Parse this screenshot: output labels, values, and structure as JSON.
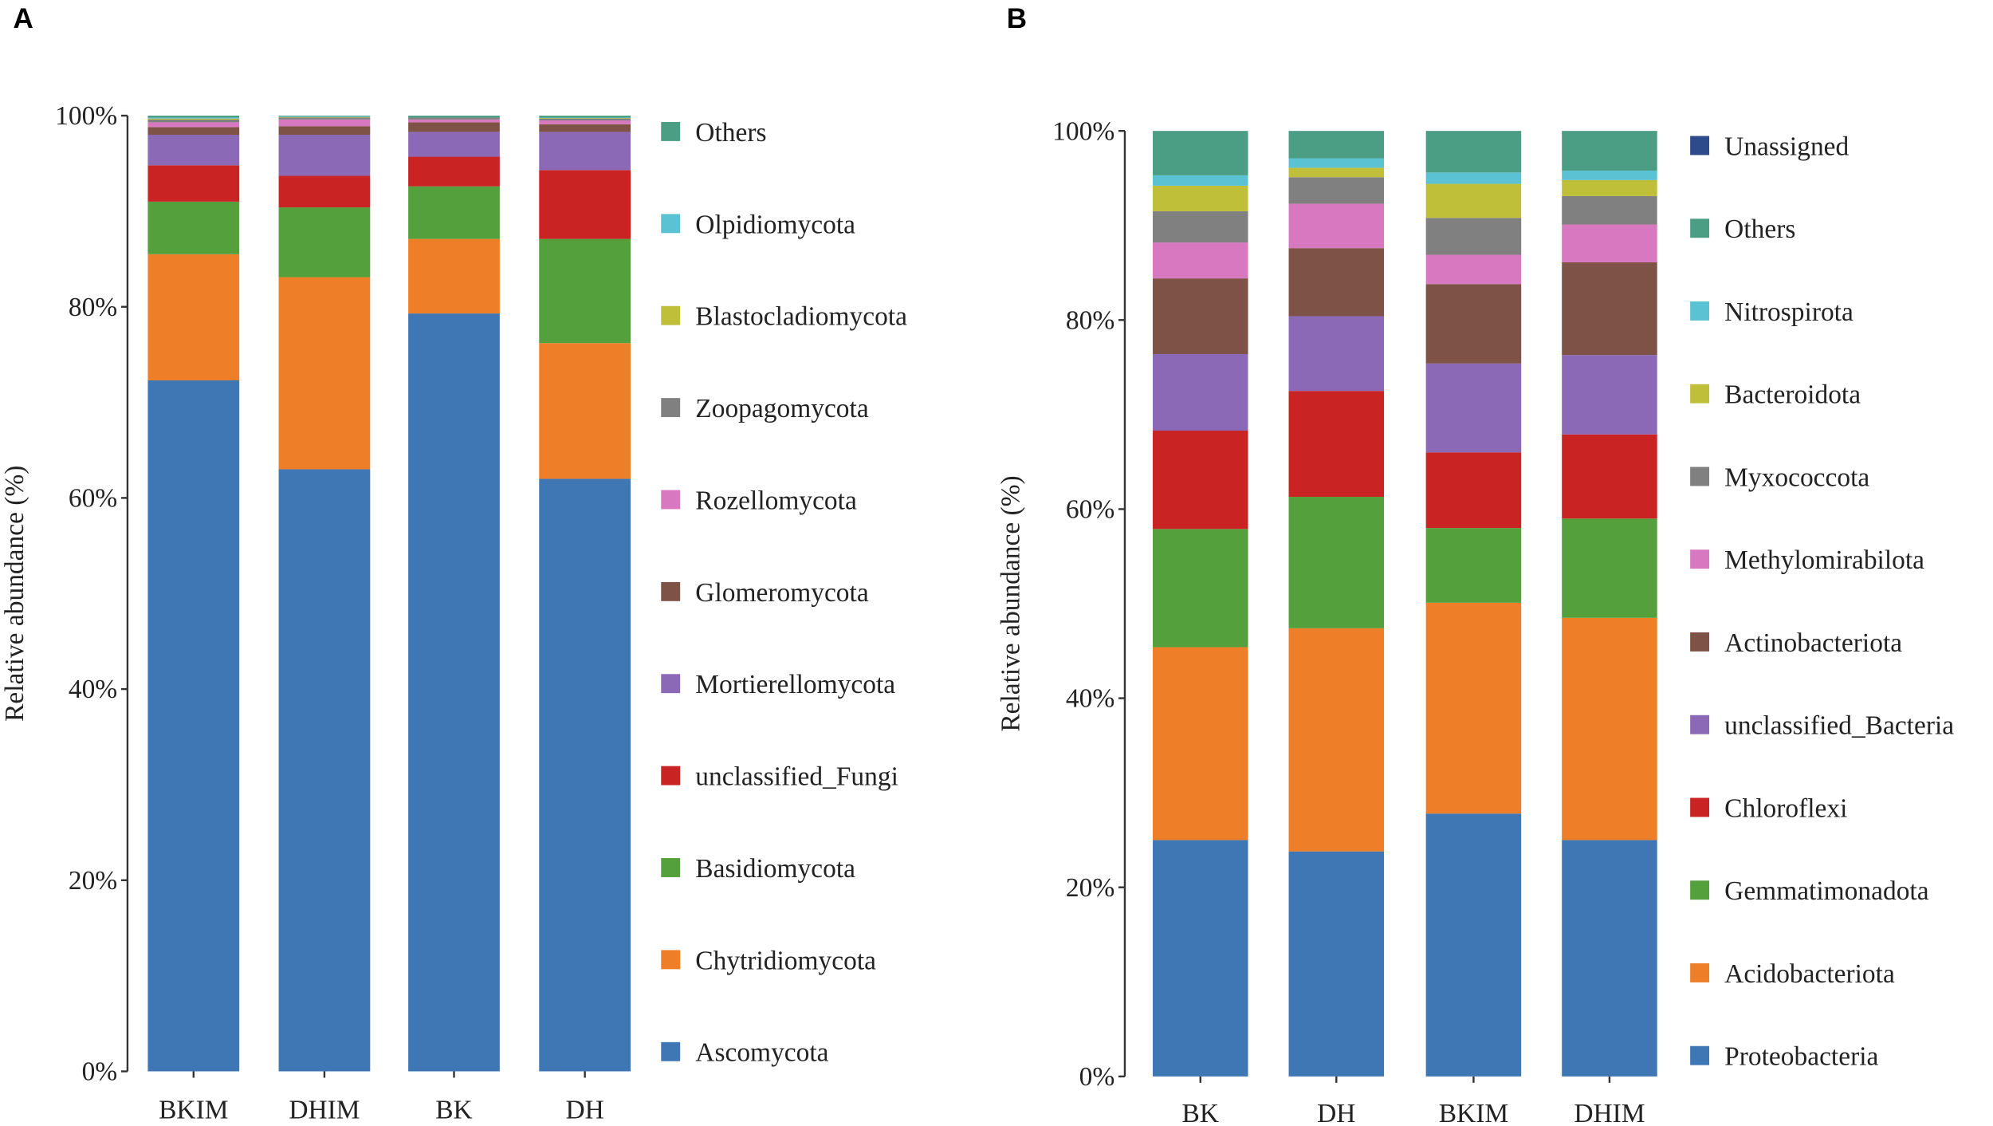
{
  "colors": {
    "Ascomycota": "#3f76b4",
    "Chytridiomycota": "#ee7f28",
    "Basidiomycota": "#54a03c",
    "unclassified_Fungi": "#c92324",
    "Mortierellomycota": "#8b69b6",
    "Glomeromycota": "#7f5248",
    "Rozellomycota": "#d878c0",
    "Zoopagomycota": "#808080",
    "Blastocladiomycota": "#bfbf3a",
    "Olpidiomycota": "#5bc2d4",
    "Others": "#4b9e84",
    "Proteobacteria": "#3f76b4",
    "Acidobacteriota": "#ee7f28",
    "Gemmatimonadota": "#54a03c",
    "Chloroflexi": "#c92324",
    "unclassified_Bacteria": "#8b69b6",
    "Actinobacteriota": "#7f5248",
    "Methylomirabilota": "#d878c0",
    "Myxococcota": "#808080",
    "Bacteroidota": "#bfbf3a",
    "Nitrospirota": "#5bc2d4",
    "Unassigned": "#2d4a8a"
  },
  "chart_data": [
    {
      "panel": "A",
      "type": "bar",
      "stacked": true,
      "ylabel": "Relative abundance (%)",
      "ylim": [
        0,
        100
      ],
      "yticks": [
        "0%",
        "20%",
        "40%",
        "60%",
        "80%",
        "100%"
      ],
      "categories": [
        "BKIM",
        "DHIM",
        "BK",
        "DH"
      ],
      "legend_position": "right",
      "series": [
        {
          "name": "Ascomycota",
          "values": [
            72.3,
            63.0,
            79.3,
            62.0
          ]
        },
        {
          "name": "Chytridiomycota",
          "values": [
            13.2,
            20.1,
            7.8,
            14.2
          ]
        },
        {
          "name": "Basidiomycota",
          "values": [
            5.5,
            7.3,
            5.5,
            10.9
          ]
        },
        {
          "name": "unclassified_Fungi",
          "values": [
            3.8,
            3.3,
            3.1,
            7.2
          ]
        },
        {
          "name": "Mortierellomycota",
          "values": [
            3.2,
            4.3,
            2.6,
            4.0
          ]
        },
        {
          "name": "Glomeromycota",
          "values": [
            0.8,
            0.9,
            1.0,
            0.8
          ]
        },
        {
          "name": "Rozellomycota",
          "values": [
            0.5,
            0.7,
            0.3,
            0.4
          ]
        },
        {
          "name": "Zoopagomycota",
          "values": [
            0.3,
            0.2,
            0.2,
            0.2
          ]
        },
        {
          "name": "Blastocladiomycota",
          "values": [
            0.1,
            0.05,
            0.0,
            0.05
          ]
        },
        {
          "name": "Olpidiomycota",
          "values": [
            0.1,
            0.05,
            0.0,
            0.05
          ]
        },
        {
          "name": "Others",
          "values": [
            0.2,
            0.1,
            0.2,
            0.2
          ]
        }
      ]
    },
    {
      "panel": "B",
      "type": "bar",
      "stacked": true,
      "ylabel": "Relative abundance (%)",
      "ylim": [
        0,
        100
      ],
      "yticks": [
        "0%",
        "20%",
        "40%",
        "60%",
        "80%",
        "100%"
      ],
      "categories": [
        "BK",
        "DH",
        "BKIM",
        "DHIM"
      ],
      "legend_position": "right",
      "series": [
        {
          "name": "Proteobacteria",
          "values": [
            25.0,
            23.8,
            27.8,
            25.0
          ]
        },
        {
          "name": "Acidobacteriota",
          "values": [
            20.4,
            23.6,
            22.3,
            23.5
          ]
        },
        {
          "name": "Gemmatimonadota",
          "values": [
            12.5,
            13.9,
            7.9,
            10.5
          ]
        },
        {
          "name": "Chloroflexi",
          "values": [
            10.4,
            11.2,
            8.0,
            8.9
          ]
        },
        {
          "name": "unclassified_Bacteria",
          "values": [
            8.1,
            7.9,
            9.4,
            8.4
          ]
        },
        {
          "name": "Actinobacteriota",
          "values": [
            8.0,
            7.2,
            8.4,
            9.8
          ]
        },
        {
          "name": "Methylomirabilota",
          "values": [
            3.8,
            4.7,
            3.1,
            4.0
          ]
        },
        {
          "name": "Myxococcota",
          "values": [
            3.3,
            2.8,
            3.9,
            3.0
          ]
        },
        {
          "name": "Bacteroidota",
          "values": [
            2.7,
            1.0,
            3.6,
            1.7
          ]
        },
        {
          "name": "Nitrospirota",
          "values": [
            1.1,
            1.0,
            1.2,
            1.0
          ]
        },
        {
          "name": "Others",
          "values": [
            4.7,
            2.9,
            4.4,
            4.2
          ]
        },
        {
          "name": "Unassigned",
          "values": [
            0.0,
            0.0,
            0.0,
            0.0
          ]
        }
      ]
    }
  ]
}
